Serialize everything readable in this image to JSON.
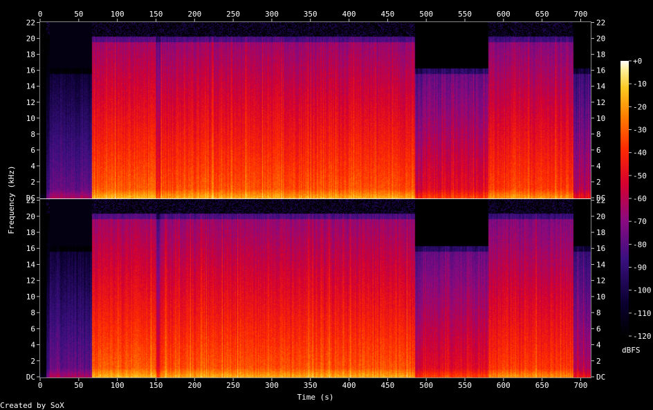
{
  "chart_data": {
    "type": "heatmap",
    "title": "",
    "xlabel": "Time (s)",
    "ylabel": "Frequency (kHz)",
    "colorbar_label": "dBFS",
    "footer": "Created by SoX",
    "xlim": [
      0,
      713
    ],
    "ylim": [
      0,
      22.05
    ],
    "x_ticks": [
      0,
      50,
      100,
      150,
      200,
      250,
      300,
      350,
      400,
      450,
      500,
      550,
      600,
      650,
      700
    ],
    "y_ticks": [
      {
        "value": 0,
        "label": "DC"
      },
      {
        "value": 2,
        "label": "2"
      },
      {
        "value": 4,
        "label": "4"
      },
      {
        "value": 6,
        "label": "6"
      },
      {
        "value": 8,
        "label": "8"
      },
      {
        "value": 10,
        "label": "10"
      },
      {
        "value": 12,
        "label": "12"
      },
      {
        "value": 14,
        "label": "14"
      },
      {
        "value": 16,
        "label": "16"
      },
      {
        "value": 18,
        "label": "18"
      },
      {
        "value": 20,
        "label": "20"
      },
      {
        "value": 22,
        "label": "22"
      }
    ],
    "colorbar_ticks": [
      "+0",
      "-10",
      "-20",
      "-30",
      "-40",
      "-50",
      "-60",
      "-70",
      "-80",
      "-90",
      "-100",
      "-110",
      "-120"
    ],
    "colorbar_range": [
      -120,
      0
    ],
    "channels": 2,
    "segments": [
      {
        "t0": 0,
        "t1": 8,
        "base": -125,
        "cutoff": 2,
        "high": -125
      },
      {
        "t0": 8,
        "t1": 12,
        "base": -85,
        "cutoff": 20,
        "high": -105
      },
      {
        "t0": 12,
        "t1": 67,
        "base": -75,
        "cutoff": 16,
        "high": -95
      },
      {
        "t0": 67,
        "t1": 150,
        "base": -28,
        "cutoff": 20,
        "high": -100
      },
      {
        "t0": 150,
        "t1": 155,
        "base": -45,
        "cutoff": 20,
        "high": -95
      },
      {
        "t0": 155,
        "t1": 485,
        "base": -30,
        "cutoff": 20,
        "high": -100
      },
      {
        "t0": 485,
        "t1": 495,
        "base": -55,
        "cutoff": 16,
        "high": -105
      },
      {
        "t0": 495,
        "t1": 580,
        "base": -48,
        "cutoff": 16,
        "high": -100
      },
      {
        "t0": 580,
        "t1": 690,
        "base": -34,
        "cutoff": 20,
        "high": -100
      },
      {
        "t0": 690,
        "t1": 713,
        "base": -60,
        "cutoff": 16,
        "high": -110
      }
    ]
  }
}
